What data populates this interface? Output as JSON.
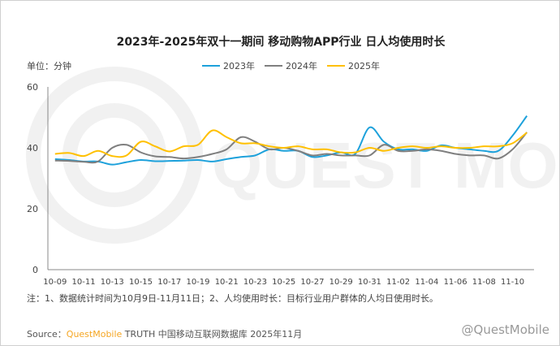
{
  "chart_data": {
    "type": "line",
    "title": "2023年-2025年双十一期间 移动购物APP行业 日人均使用时长",
    "ylabel": "单位：分钟",
    "ylim": [
      0,
      60
    ],
    "yticks": [
      0,
      20,
      40,
      60
    ],
    "grid": false,
    "legend_position": "top",
    "x": [
      "10-09",
      "10-10",
      "10-11",
      "10-12",
      "10-13",
      "10-14",
      "10-15",
      "10-16",
      "10-17",
      "10-18",
      "10-19",
      "10-20",
      "10-21",
      "10-22",
      "10-23",
      "10-24",
      "10-25",
      "10-26",
      "10-27",
      "10-28",
      "10-29",
      "10-30",
      "10-31",
      "11-01",
      "11-02",
      "11-03",
      "11-04",
      "11-05",
      "11-06",
      "11-07",
      "11-08",
      "11-09",
      "11-10",
      "11-11"
    ],
    "xtick_labels": [
      "10-09",
      "10-11",
      "10-13",
      "10-15",
      "10-17",
      "10-19",
      "10-21",
      "10-23",
      "10-25",
      "10-27",
      "10-29",
      "10-31",
      "11-02",
      "11-04",
      "11-06",
      "11-08",
      "11-10"
    ],
    "series": [
      {
        "name": "2023年",
        "color": "#1da1db",
        "values": [
          36.3,
          36,
          35.5,
          35.5,
          34.5,
          35.3,
          36,
          35.6,
          35.7,
          35.8,
          36,
          35.5,
          36.3,
          37,
          37.5,
          39.5,
          39,
          39,
          37,
          37.5,
          38.5,
          38,
          46.7,
          42,
          39.5,
          39.5,
          39,
          40.8,
          40,
          39.5,
          39,
          39,
          44,
          50.5
        ]
      },
      {
        "name": "2024年",
        "color": "#7f7f7f",
        "values": [
          35.8,
          35.7,
          35.4,
          35.5,
          40,
          41,
          38.5,
          37.2,
          37,
          36.5,
          37,
          38,
          39.5,
          43.5,
          42,
          39.5,
          40,
          39,
          37.5,
          38,
          37.5,
          37.5,
          37.5,
          41,
          39,
          39,
          39.5,
          39,
          38,
          37.5,
          37.5,
          36.5,
          39.5,
          45.1
        ]
      },
      {
        "name": "2025年",
        "color": "#ffc000",
        "values": [
          38,
          38.3,
          37.3,
          39,
          37.3,
          37.5,
          42,
          40.5,
          38.8,
          40.5,
          41,
          45.7,
          43.5,
          41.5,
          41.5,
          40.5,
          40,
          40.5,
          39.5,
          39.5,
          38.5,
          38.5,
          40,
          39,
          40,
          40.5,
          40,
          40.5,
          40,
          40,
          40.5,
          40.5,
          41.5,
          45
        ]
      }
    ]
  },
  "note": "注：1、数据统计时间为10月9日-11月11日；2、人均使用时长：目标行业用户群体的人均日使用时长。",
  "source": {
    "label": "Source：",
    "brand": "QuestMobile",
    "rest": " TRUTH 中国移动互联网数据库 2025年11月"
  },
  "watermark": "QUEST MOBILE",
  "footer_watermark": "@QuestMobile"
}
